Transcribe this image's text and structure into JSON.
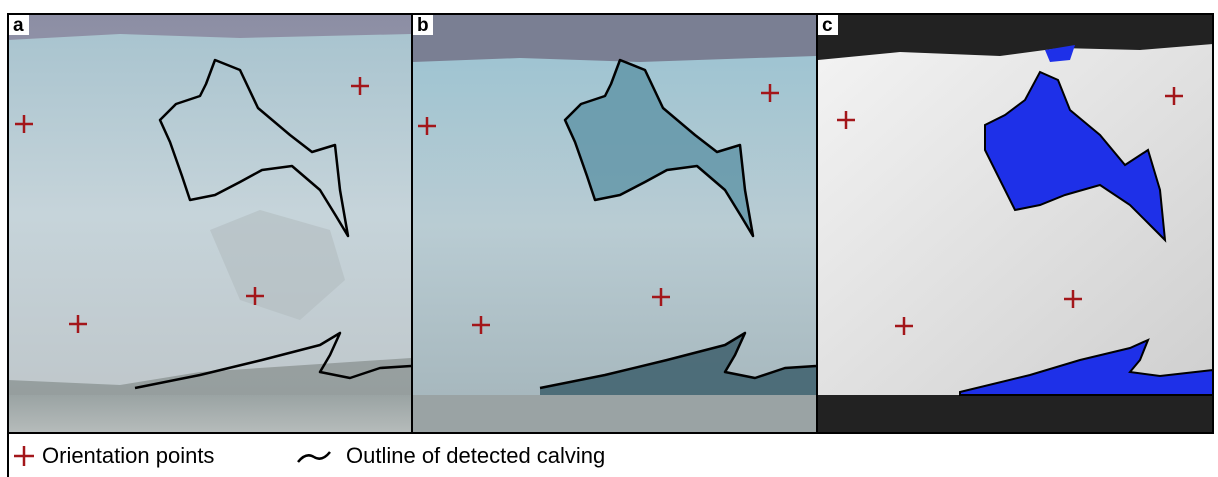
{
  "panels": [
    {
      "label": "a"
    },
    {
      "label": "b"
    },
    {
      "label": "c"
    }
  ],
  "legend": {
    "orientation_points": "Orientation points",
    "calving_outline": "Outline of detected calving"
  }
}
